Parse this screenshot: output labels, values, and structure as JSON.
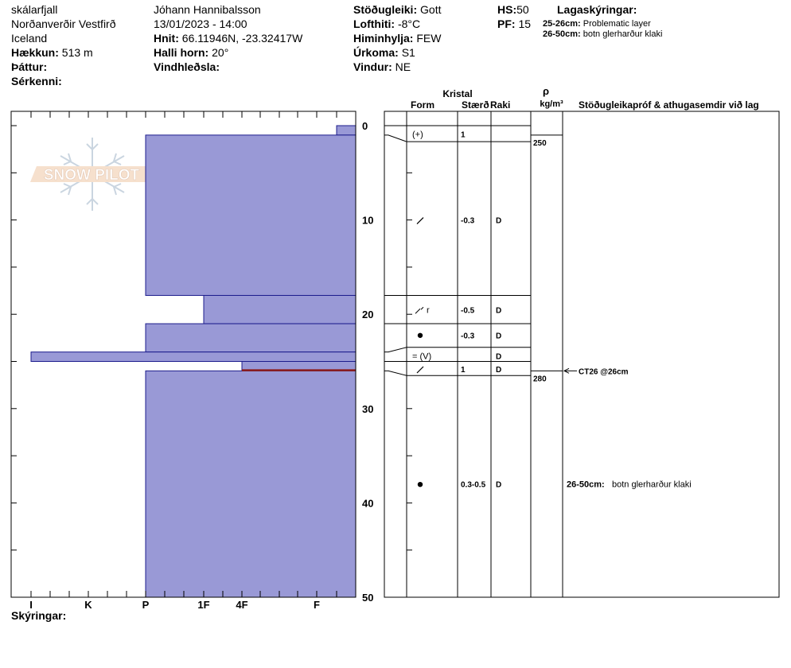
{
  "header": {
    "location": "skálarfjall",
    "region": "Norðanverðir Vestfirð",
    "country": "Iceland",
    "elevation_label": "Hækkun:",
    "elevation_value": "513 m",
    "aspect_label": "Þáttur:",
    "feature_label": "Sérkenni:",
    "observer": "Jóhann Hannibalsson",
    "datetime": "13/01/2023 - 14:00",
    "coords_label": "Hnit:",
    "coords_value": "66.11946N, -23.32417W",
    "slope_label": "Halli horn:",
    "slope_value": "20°",
    "wind_loading_label": "Vindhleðsla:",
    "stability_label": "Stöðugleiki:",
    "stability_value": "Gott",
    "air_temp_label": "Lofthiti:",
    "air_temp_value": "-8°C",
    "sky_label": "Himinhylja:",
    "sky_value": "FEW",
    "precip_label": "Úrkoma:",
    "precip_value": "S1",
    "wind_label": "Vindur:",
    "wind_value": "NE",
    "hs_label": "HS:",
    "hs_value": "50",
    "pf_label": "PF:",
    "pf_value": "15",
    "layer_notes_title": "Lagaskýringar:",
    "layer_notes": [
      {
        "depth": "25-26cm:",
        "text": "Problematic layer"
      },
      {
        "depth": "26-50cm:",
        "text": "botn glerharður klaki"
      }
    ]
  },
  "table_headers": {
    "crystal": "Kristal",
    "form": "Form",
    "size": "Stærð",
    "moisture": "Raki",
    "density_symbol": "ρ",
    "density_unit": "kg/m³",
    "comments": "Stöðugleikapróf & athugasemdir við lag"
  },
  "footer": {
    "notes_label": "Skýringar:"
  },
  "chart_data": {
    "type": "snow-profile",
    "depth_axis": {
      "label": "",
      "min": 0,
      "max": 50,
      "ticks": [
        0,
        10,
        20,
        30,
        40,
        50
      ],
      "minor_step": 5
    },
    "hardness_axis": {
      "ticks": [
        "I",
        "K",
        "P",
        "1F",
        "4F",
        "F"
      ]
    },
    "hardness_layers": [
      {
        "top": 0,
        "bottom": 1,
        "hardness": "F+"
      },
      {
        "top": 1,
        "bottom": 18,
        "hardness": "P"
      },
      {
        "top": 18,
        "bottom": 21,
        "hardness": "1F"
      },
      {
        "top": 21,
        "bottom": 24,
        "hardness": "P"
      },
      {
        "top": 24,
        "bottom": 25,
        "hardness": "I"
      },
      {
        "top": 25,
        "bottom": 26,
        "hardness": "4F"
      },
      {
        "top": 26,
        "bottom": 50,
        "hardness": "P"
      }
    ],
    "problematic_layer": {
      "top": 25,
      "bottom": 26,
      "color": "#8b1a1a"
    },
    "grain_rows": [
      {
        "top": 0,
        "bottom": 1.7,
        "form": "",
        "size": "",
        "moisture": ""
      },
      {
        "top": 1.7,
        "bottom": 18,
        "form": "(+)",
        "size": "1",
        "moisture": "",
        "label_depth": 0.9
      },
      {
        "top": 1.7,
        "bottom": 18,
        "form": "╱",
        "size": "-0.3",
        "moisture": "D",
        "label_depth": 10
      },
      {
        "top": 18,
        "bottom": 21,
        "form": "⁄ r",
        "size": "-0.5",
        "moisture": "D",
        "label_depth": 19.5
      },
      {
        "top": 21,
        "bottom": 23.5,
        "form": "●",
        "size": "-0.3",
        "moisture": "D",
        "label_depth": 22.2
      },
      {
        "top": 23.5,
        "bottom": 25,
        "form": "= (V)",
        "size": "",
        "moisture": "D",
        "label_depth": 24.4
      },
      {
        "top": 25,
        "bottom": 26.5,
        "form": "╱",
        "size": "1",
        "moisture": "D",
        "label_depth": 25.8
      },
      {
        "top": 26.5,
        "bottom": 50,
        "form": "●",
        "size": "0.3-0.5",
        "moisture": "D",
        "label_depth": 38
      }
    ],
    "grain_boundaries": [
      0,
      1.7,
      18,
      21,
      23.5,
      25,
      26.5
    ],
    "densities": [
      {
        "depth": 1,
        "value": "250"
      },
      {
        "depth": 26,
        "value": "280"
      }
    ],
    "stability_tests": [
      {
        "depth": 26,
        "text": "CT26 @26cm"
      }
    ],
    "comments": [
      {
        "depth": 38,
        "label": "26-50cm:",
        "text": "botn glerharður klaki"
      }
    ],
    "colors": {
      "layer_fill": "#9999d6",
      "layer_stroke": "#1c1c8c",
      "problematic": "#8b1a1a"
    }
  }
}
